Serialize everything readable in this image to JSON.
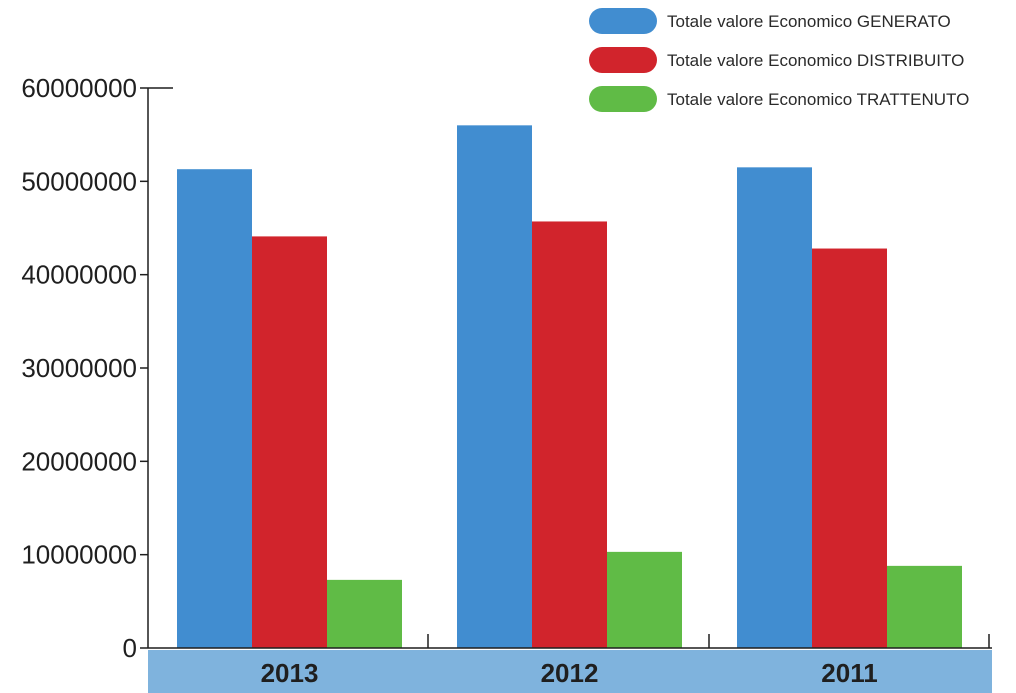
{
  "chart_data": {
    "type": "bar",
    "title": "",
    "xlabel": "",
    "ylabel": "",
    "categories": [
      "2013",
      "2012",
      "2011"
    ],
    "series": [
      {
        "name": "Totale valore Economico GENERATO",
        "color": "#418dd0",
        "values": [
          51300000,
          56000000,
          51500000
        ]
      },
      {
        "name": "Totale valore Economico DISTRIBUITO",
        "color": "#d1242c",
        "values": [
          44100000,
          45700000,
          42800000
        ]
      },
      {
        "name": "Totale valore Economico TRATTENUTO",
        "color": "#60bb46",
        "values": [
          7300000,
          10300000,
          8800000
        ]
      }
    ],
    "ylim": [
      0,
      60000000
    ],
    "yticks": [
      0,
      10000000,
      20000000,
      30000000,
      40000000,
      50000000,
      60000000
    ],
    "ytick_labels": [
      "0",
      "10000000",
      "20000000",
      "30000000",
      "40000000",
      "50000000",
      "60000000"
    ],
    "grid": false,
    "legend_position": "top-right",
    "category_band_color": "#7fb3dd"
  }
}
